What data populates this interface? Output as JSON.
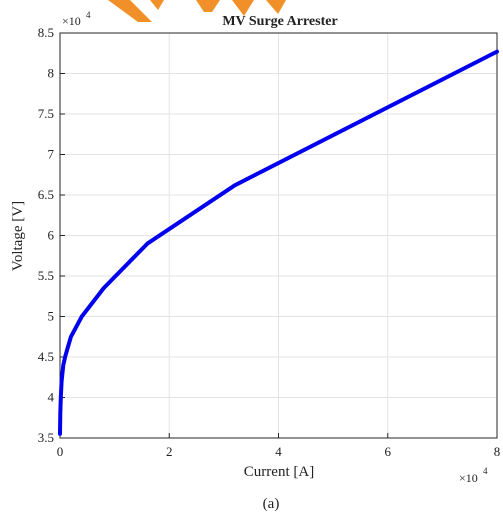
{
  "chart_data": {
    "type": "line",
    "title": "MV Surge Arrester",
    "xlabel": "Current [A]",
    "ylabel": "Voltage [V]",
    "caption": "(a)",
    "x_multiplier_label": "×10",
    "y_multiplier_label": "×10",
    "multiplier_exponent": "4",
    "xlim": [
      0,
      80000
    ],
    "ylim": [
      35000,
      85000
    ],
    "xticks": [
      0,
      20000,
      40000,
      60000,
      80000
    ],
    "xtick_labels": [
      "0",
      "2",
      "4",
      "6",
      "8"
    ],
    "yticks": [
      35000,
      40000,
      45000,
      50000,
      55000,
      60000,
      65000,
      70000,
      75000,
      80000,
      85000
    ],
    "ytick_labels": [
      "3.5",
      "4",
      "4.5",
      "5",
      "5.5",
      "6",
      "6.5",
      "7",
      "7.5",
      "8",
      "8.5"
    ],
    "grid": true,
    "line_color": "#0000ee",
    "series": [
      {
        "x": [
          0,
          50,
          150,
          300,
          600,
          1000,
          2000,
          4000,
          8000,
          16000,
          32000,
          80000
        ],
        "y": [
          35500,
          38000,
          40000,
          42000,
          44000,
          45200,
          47500,
          50000,
          53500,
          59000,
          66200,
          82700
        ]
      }
    ]
  },
  "decoration": {
    "watermark_color": "#f08a1c"
  }
}
